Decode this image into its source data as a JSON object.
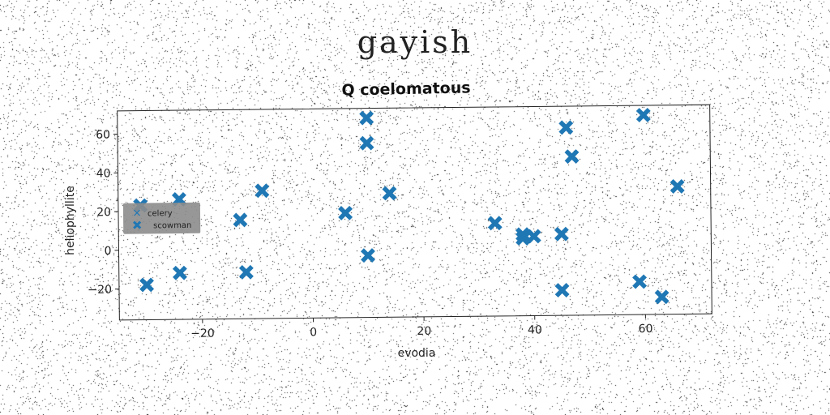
{
  "figure": {
    "title": "gayish"
  },
  "chart_data": {
    "type": "scatter",
    "title": "Q coelomatous",
    "xlabel": "evodia",
    "ylabel": "heliophyllite",
    "xlim": [
      -35,
      72
    ],
    "ylim": [
      -36,
      72
    ],
    "xticks": [
      -20,
      0,
      20,
      40,
      60
    ],
    "yticks": [
      -20,
      0,
      20,
      40,
      60
    ],
    "grid": false,
    "legend": {
      "placement": "center-left",
      "entries": [
        "celery",
        "scowman"
      ]
    },
    "series": [
      {
        "name": "celery",
        "color": "#1f77b4",
        "marker": "thin-x",
        "x": [],
        "y": []
      },
      {
        "name": "scowman",
        "color": "#1f77b4",
        "marker": "X",
        "x": [
          -31,
          -24,
          -30,
          -24,
          -13,
          -12,
          -9,
          6,
          10,
          10,
          10,
          14,
          33,
          38,
          38,
          40,
          45,
          45,
          46,
          47,
          59,
          60,
          63,
          66
        ],
        "y": [
          23,
          26,
          -18,
          -12,
          15,
          -12,
          30,
          18,
          67,
          54,
          -4,
          28,
          12,
          6,
          4,
          5,
          -23,
          6,
          61,
          46,
          -19,
          67,
          -27,
          30
        ]
      }
    ]
  }
}
